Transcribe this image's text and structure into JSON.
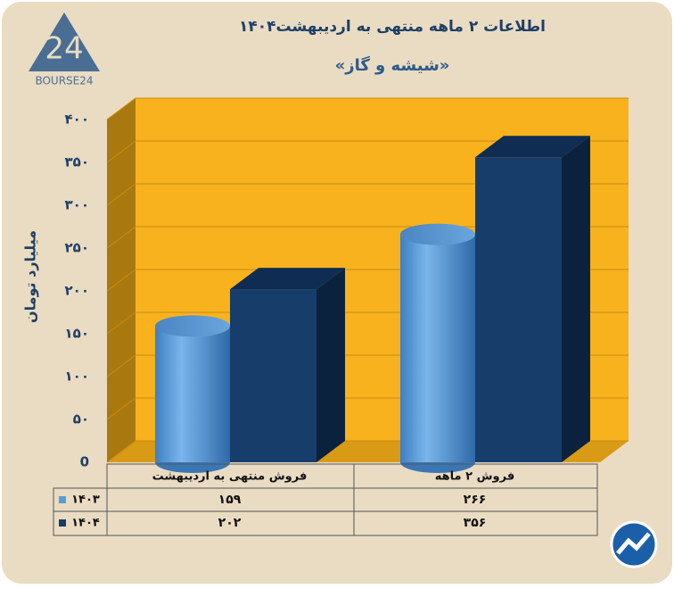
{
  "logo": "BOURSE24",
  "chart_data": {
    "type": "bar",
    "title": "اطلاعات ۲ ماهه منتهی به اردیبهشت۱۴۰۴",
    "subtitle": "«شیشه و گاز»",
    "y_label": "میلیارد تومان",
    "categories": [
      "فروش منتهی به  اردیبهشت",
      "فروش ۲  ماهه"
    ],
    "series": [
      {
        "name": "۱۴۰۳",
        "color": "#5b9bd5",
        "shape": "cylinder",
        "values": [
          159,
          266
        ],
        "value_labels": [
          "۱۵۹",
          "۲۶۶"
        ]
      },
      {
        "name": "۱۴۰۴",
        "color": "#173d6b",
        "shape": "box",
        "values": [
          202,
          356
        ],
        "value_labels": [
          "۲۰۲",
          "۳۵۶"
        ]
      }
    ],
    "ylim": [
      0,
      400
    ],
    "yticks": [
      0,
      {
        "value": 50,
        "label": "۵۰"
      },
      {
        "value": 100,
        "label": "۱۰۰"
      },
      {
        "value": 150,
        "label": "۱۵۰"
      },
      {
        "value": 200,
        "label": "۲۰۰"
      },
      {
        "value": 250,
        "label": "۲۵۰"
      },
      {
        "value": 300,
        "label": "۳۰۰"
      },
      {
        "value": 350,
        "label": "۳۵۰"
      },
      {
        "value": 400,
        "label": "۴۰۰"
      }
    ],
    "grid": true
  }
}
